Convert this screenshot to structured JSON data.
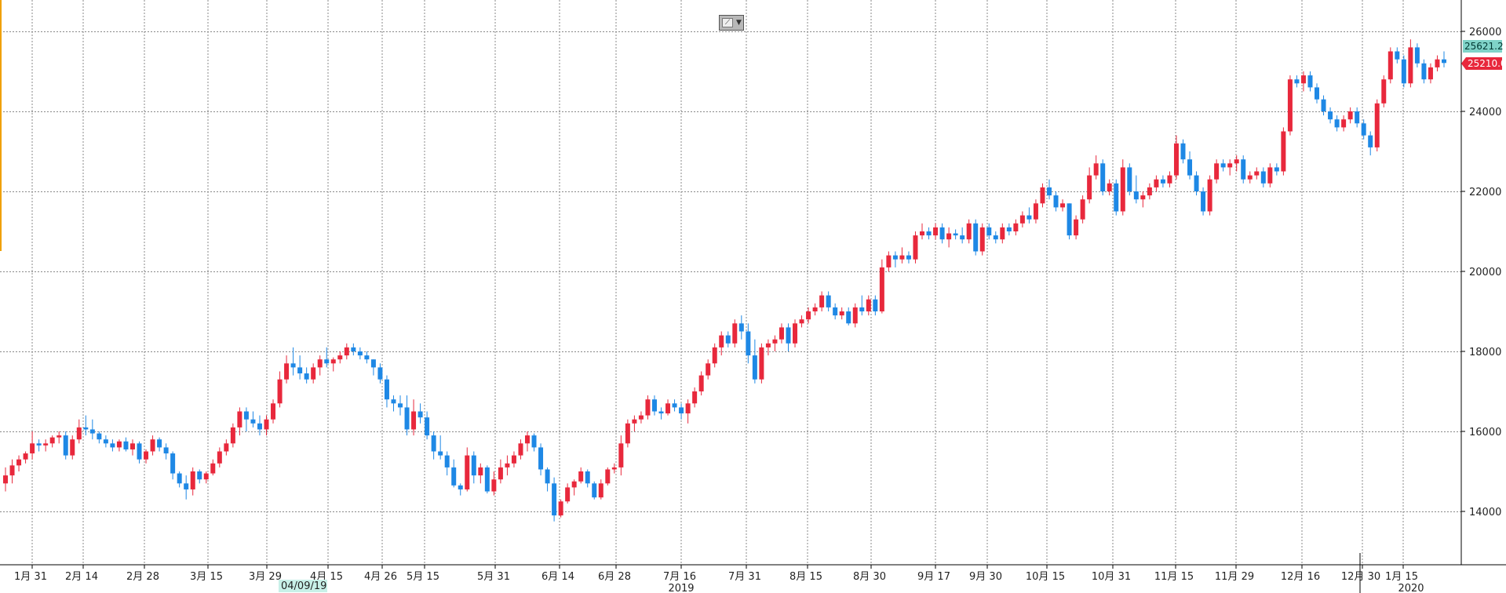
{
  "toolbar": {
    "chart_style_icon": "line-chart-icon"
  },
  "colors": {
    "up": "#e8283c",
    "down": "#1e88e5",
    "grid": "#888888",
    "last_price_bg": "#e8283c",
    "ref_price_bg": "#7fd3c8",
    "left_marker": "#f0a000"
  },
  "chart_data": {
    "type": "candlestick",
    "title": "",
    "xlabel": "",
    "ylabel": "",
    "ylim": [
      12800,
      26800
    ],
    "grid": true,
    "y_ticks": [
      "14000",
      "16000",
      "18000",
      "20000",
      "22000",
      "24000",
      "26000"
    ],
    "x_ticks": [
      "1月 31",
      "2月 14",
      "2月 28",
      "3月 15",
      "3月 29",
      "4月 15",
      "4月 26",
      "5月 15",
      "5月 31",
      "6月 14",
      "6月 28",
      "7月 16",
      "7月 31",
      "8月 15",
      "8月 30",
      "9月 17",
      "9月 30",
      "10月 15",
      "10月 31",
      "11月 15",
      "11月 29",
      "12月 16",
      "12月 30",
      "1月 15"
    ],
    "year_labels": [
      "2019",
      "2020"
    ],
    "cursor_date": "04/09/19",
    "last_price": "25210.0",
    "ref_price": "25621.2",
    "ohlc": [
      [
        14700,
        15100,
        14500,
        14900
      ],
      [
        14900,
        15300,
        14700,
        15150
      ],
      [
        15150,
        15400,
        15000,
        15300
      ],
      [
        15300,
        15500,
        15200,
        15450
      ],
      [
        15450,
        16000,
        15300,
        15700
      ],
      [
        15700,
        15800,
        15500,
        15650
      ],
      [
        15650,
        15800,
        15500,
        15700
      ],
      [
        15700,
        15900,
        15600,
        15850
      ],
      [
        15850,
        16000,
        15700,
        15900
      ],
      [
        15900,
        16000,
        15300,
        15400
      ],
      [
        15400,
        15900,
        15300,
        15800
      ],
      [
        15800,
        16300,
        15700,
        16100
      ],
      [
        16100,
        16400,
        15900,
        16050
      ],
      [
        16050,
        16300,
        15800,
        15950
      ],
      [
        15950,
        16000,
        15700,
        15800
      ],
      [
        15800,
        15900,
        15600,
        15700
      ],
      [
        15700,
        15800,
        15500,
        15600
      ],
      [
        15600,
        15800,
        15500,
        15750
      ],
      [
        15750,
        15850,
        15500,
        15550
      ],
      [
        15550,
        15800,
        15400,
        15700
      ],
      [
        15700,
        15750,
        15200,
        15300
      ],
      [
        15300,
        15550,
        15200,
        15500
      ],
      [
        15500,
        15900,
        15400,
        15800
      ],
      [
        15800,
        15850,
        15500,
        15600
      ],
      [
        15600,
        15700,
        15300,
        15450
      ],
      [
        15450,
        15500,
        14800,
        14950
      ],
      [
        14950,
        15000,
        14600,
        14700
      ],
      [
        14700,
        14900,
        14300,
        14550
      ],
      [
        14550,
        15100,
        14400,
        15000
      ],
      [
        15000,
        15050,
        14700,
        14800
      ],
      [
        14800,
        15000,
        14700,
        14950
      ],
      [
        14950,
        15300,
        14900,
        15200
      ],
      [
        15200,
        15600,
        15100,
        15500
      ],
      [
        15500,
        15800,
        15400,
        15700
      ],
      [
        15700,
        16200,
        15600,
        16100
      ],
      [
        16100,
        16600,
        15900,
        16500
      ],
      [
        16500,
        16600,
        16000,
        16300
      ],
      [
        16300,
        16500,
        16100,
        16200
      ],
      [
        16200,
        16400,
        15900,
        16050
      ],
      [
        16050,
        16400,
        15900,
        16300
      ],
      [
        16300,
        16800,
        16200,
        16700
      ],
      [
        16700,
        17500,
        16600,
        17300
      ],
      [
        17300,
        17900,
        17200,
        17700
      ],
      [
        17700,
        18100,
        17400,
        17600
      ],
      [
        17600,
        17900,
        17300,
        17450
      ],
      [
        17450,
        17600,
        17200,
        17300
      ],
      [
        17300,
        17700,
        17200,
        17600
      ],
      [
        17600,
        17900,
        17400,
        17800
      ],
      [
        17800,
        18100,
        17600,
        17700
      ],
      [
        17700,
        17850,
        17500,
        17800
      ],
      [
        17800,
        18000,
        17700,
        17900
      ],
      [
        17900,
        18200,
        17800,
        18100
      ],
      [
        18100,
        18200,
        17900,
        18000
      ],
      [
        18000,
        18100,
        17800,
        17900
      ],
      [
        17900,
        18000,
        17700,
        17800
      ],
      [
        17800,
        17800,
        17400,
        17600
      ],
      [
        17600,
        17700,
        17200,
        17300
      ],
      [
        17300,
        17400,
        16600,
        16800
      ],
      [
        16800,
        16900,
        16500,
        16700
      ],
      [
        16700,
        16900,
        16400,
        16600
      ],
      [
        16600,
        16900,
        15900,
        16050
      ],
      [
        16050,
        16800,
        15900,
        16500
      ],
      [
        16500,
        16700,
        16200,
        16350
      ],
      [
        16350,
        16500,
        15800,
        15900
      ],
      [
        15900,
        16000,
        15300,
        15500
      ],
      [
        15500,
        15900,
        15300,
        15400
      ],
      [
        15400,
        15500,
        14900,
        15100
      ],
      [
        15100,
        15300,
        14600,
        14650
      ],
      [
        14650,
        14700,
        14400,
        14550
      ],
      [
        14550,
        15600,
        14500,
        15400
      ],
      [
        15400,
        15500,
        14700,
        14900
      ],
      [
        14900,
        15200,
        14700,
        15100
      ],
      [
        15100,
        15150,
        14450,
        14500
      ],
      [
        14500,
        15000,
        14400,
        14800
      ],
      [
        14800,
        15300,
        14700,
        15100
      ],
      [
        15100,
        15400,
        14900,
        15200
      ],
      [
        15200,
        15500,
        15100,
        15400
      ],
      [
        15400,
        15800,
        15300,
        15700
      ],
      [
        15700,
        16000,
        15500,
        15900
      ],
      [
        15900,
        15950,
        15500,
        15600
      ],
      [
        15600,
        15700,
        14900,
        15050
      ],
      [
        15050,
        15100,
        14500,
        14700
      ],
      [
        14700,
        14850,
        13750,
        13900
      ],
      [
        13900,
        14300,
        13850,
        14250
      ],
      [
        14250,
        14700,
        14200,
        14600
      ],
      [
        14600,
        14800,
        14400,
        14750
      ],
      [
        14750,
        15100,
        14700,
        15000
      ],
      [
        15000,
        15050,
        14600,
        14700
      ],
      [
        14700,
        14750,
        14300,
        14350
      ],
      [
        14350,
        14800,
        14300,
        14700
      ],
      [
        14700,
        15100,
        14650,
        15050
      ],
      [
        15050,
        15200,
        14950,
        15100
      ],
      [
        15100,
        15900,
        14900,
        15700
      ],
      [
        15700,
        16300,
        15600,
        16200
      ],
      [
        16200,
        16400,
        16000,
        16300
      ],
      [
        16300,
        16500,
        16200,
        16400
      ],
      [
        16400,
        16900,
        16300,
        16800
      ],
      [
        16800,
        16900,
        16400,
        16500
      ],
      [
        16500,
        16600,
        16300,
        16450
      ],
      [
        16450,
        16800,
        16400,
        16700
      ],
      [
        16700,
        16800,
        16500,
        16600
      ],
      [
        16600,
        16700,
        16300,
        16450
      ],
      [
        16450,
        16800,
        16200,
        16700
      ],
      [
        16700,
        17100,
        16600,
        17000
      ],
      [
        17000,
        17500,
        16900,
        17400
      ],
      [
        17400,
        17800,
        17300,
        17700
      ],
      [
        17700,
        18200,
        17600,
        18100
      ],
      [
        18100,
        18500,
        17900,
        18400
      ],
      [
        18400,
        18500,
        18100,
        18200
      ],
      [
        18200,
        18800,
        18100,
        18700
      ],
      [
        18700,
        18900,
        18300,
        18500
      ],
      [
        18500,
        18700,
        17700,
        17900
      ],
      [
        17900,
        18300,
        17200,
        17300
      ],
      [
        17300,
        18200,
        17200,
        18100
      ],
      [
        18100,
        18300,
        17900,
        18200
      ],
      [
        18200,
        18400,
        18000,
        18300
      ],
      [
        18300,
        18700,
        18200,
        18600
      ],
      [
        18600,
        18700,
        18000,
        18200
      ],
      [
        18200,
        18800,
        18100,
        18700
      ],
      [
        18700,
        18900,
        18600,
        18800
      ],
      [
        18800,
        19100,
        18700,
        19000
      ],
      [
        19000,
        19200,
        18900,
        19100
      ],
      [
        19100,
        19500,
        19000,
        19400
      ],
      [
        19400,
        19500,
        19000,
        19100
      ],
      [
        19100,
        19200,
        18800,
        18900
      ],
      [
        18900,
        19100,
        18800,
        19000
      ],
      [
        19000,
        19100,
        18650,
        18700
      ],
      [
        18700,
        19200,
        18600,
        19100
      ],
      [
        19100,
        19400,
        18900,
        19000
      ],
      [
        19000,
        19400,
        18900,
        19300
      ],
      [
        19300,
        19400,
        18900,
        19000
      ],
      [
        19000,
        20300,
        18950,
        20100
      ],
      [
        20100,
        20500,
        20000,
        20400
      ],
      [
        20400,
        20500,
        20100,
        20300
      ],
      [
        20300,
        20600,
        20200,
        20400
      ],
      [
        20400,
        20500,
        20200,
        20300
      ],
      [
        20300,
        21000,
        20200,
        20900
      ],
      [
        20900,
        21200,
        20800,
        21000
      ],
      [
        21000,
        21100,
        20800,
        20900
      ],
      [
        20900,
        21200,
        20800,
        21100
      ],
      [
        21100,
        21200,
        20700,
        20800
      ],
      [
        20800,
        21100,
        20600,
        20950
      ],
      [
        20950,
        21050,
        20800,
        20900
      ],
      [
        20900,
        21100,
        20700,
        20800
      ],
      [
        20800,
        21300,
        20700,
        21200
      ],
      [
        21200,
        21300,
        20400,
        20500
      ],
      [
        20500,
        21200,
        20400,
        21100
      ],
      [
        21100,
        21200,
        20800,
        20900
      ],
      [
        20900,
        21000,
        20700,
        20800
      ],
      [
        20800,
        21200,
        20700,
        21100
      ],
      [
        21100,
        21200,
        20900,
        21000
      ],
      [
        21000,
        21300,
        20900,
        21200
      ],
      [
        21200,
        21500,
        21100,
        21400
      ],
      [
        21400,
        21600,
        21200,
        21300
      ],
      [
        21300,
        21800,
        21200,
        21700
      ],
      [
        21700,
        22200,
        21600,
        22100
      ],
      [
        22100,
        22300,
        21800,
        21900
      ],
      [
        21900,
        22000,
        21500,
        21600
      ],
      [
        21600,
        21800,
        21500,
        21700
      ],
      [
        21700,
        21700,
        20800,
        20900
      ],
      [
        20900,
        21400,
        20800,
        21300
      ],
      [
        21300,
        21900,
        21200,
        21800
      ],
      [
        21800,
        22600,
        21700,
        22400
      ],
      [
        22400,
        22900,
        22300,
        22700
      ],
      [
        22700,
        22800,
        21900,
        22000
      ],
      [
        22000,
        22300,
        21900,
        22200
      ],
      [
        22200,
        22300,
        21400,
        21500
      ],
      [
        21500,
        22800,
        21400,
        22600
      ],
      [
        22600,
        22700,
        21900,
        22000
      ],
      [
        22000,
        22400,
        21700,
        21800
      ],
      [
        21800,
        22000,
        21600,
        21900
      ],
      [
        21900,
        22200,
        21800,
        22100
      ],
      [
        22100,
        22400,
        22000,
        22300
      ],
      [
        22300,
        22400,
        22100,
        22200
      ],
      [
        22200,
        22500,
        22100,
        22400
      ],
      [
        22400,
        23400,
        22300,
        23200
      ],
      [
        23200,
        23300,
        22700,
        22800
      ],
      [
        22800,
        23000,
        22300,
        22400
      ],
      [
        22400,
        22500,
        21900,
        22000
      ],
      [
        22000,
        22100,
        21400,
        21500
      ],
      [
        21500,
        22400,
        21400,
        22300
      ],
      [
        22300,
        22800,
        22200,
        22700
      ],
      [
        22700,
        22800,
        22500,
        22600
      ],
      [
        22600,
        22800,
        22400,
        22700
      ],
      [
        22700,
        22900,
        22500,
        22800
      ],
      [
        22800,
        22900,
        22200,
        22300
      ],
      [
        22300,
        22500,
        22200,
        22400
      ],
      [
        22400,
        22600,
        22300,
        22500
      ],
      [
        22500,
        22600,
        22100,
        22200
      ],
      [
        22200,
        22700,
        22100,
        22600
      ],
      [
        22600,
        22700,
        22400,
        22500
      ],
      [
        22500,
        23600,
        22400,
        23500
      ],
      [
        23500,
        24900,
        23400,
        24800
      ],
      [
        24800,
        24900,
        24600,
        24700
      ],
      [
        24700,
        25000,
        24500,
        24900
      ],
      [
        24900,
        25000,
        24500,
        24600
      ],
      [
        24600,
        24700,
        24200,
        24300
      ],
      [
        24300,
        24400,
        23900,
        24000
      ],
      [
        24000,
        24100,
        23700,
        23800
      ],
      [
        23800,
        23900,
        23500,
        23600
      ],
      [
        23600,
        23900,
        23500,
        23800
      ],
      [
        23800,
        24100,
        23700,
        24000
      ],
      [
        24000,
        24100,
        23600,
        23700
      ],
      [
        23700,
        23800,
        23300,
        23400
      ],
      [
        23400,
        23500,
        22900,
        23100
      ],
      [
        23100,
        24300,
        23000,
        24200
      ],
      [
        24200,
        24900,
        24100,
        24800
      ],
      [
        24800,
        25600,
        24700,
        25500
      ],
      [
        25500,
        25600,
        25200,
        25300
      ],
      [
        25300,
        25400,
        24600,
        24700
      ],
      [
        24700,
        25800,
        24600,
        25600
      ],
      [
        25600,
        25700,
        25100,
        25200
      ],
      [
        25200,
        25300,
        24700,
        24800
      ],
      [
        24800,
        25200,
        24700,
        25100
      ],
      [
        25100,
        25400,
        25000,
        25300
      ],
      [
        25300,
        25500,
        25100,
        25210
      ]
    ]
  }
}
